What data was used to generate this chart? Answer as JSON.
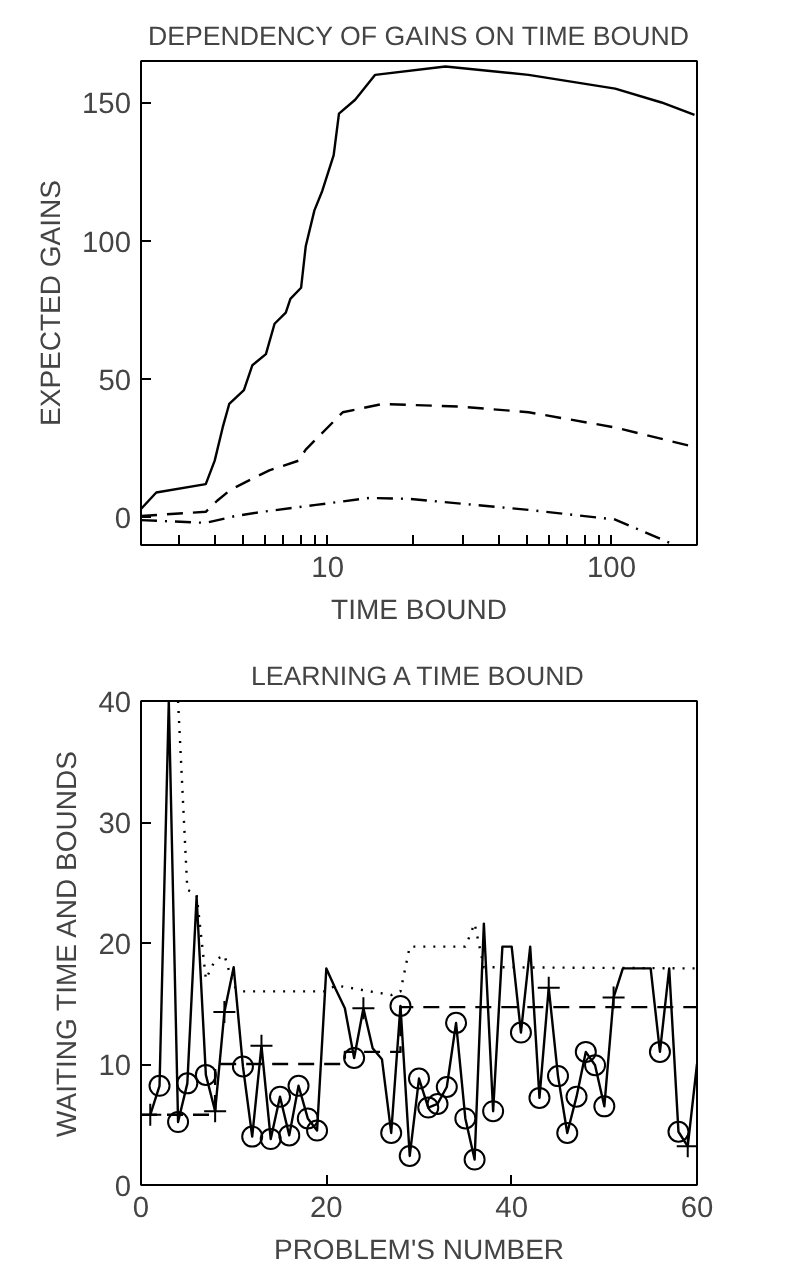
{
  "chart_data": [
    {
      "type": "line",
      "title": "DEPENDENCY OF GAINS ON TIME BOUND",
      "xlabel": "TIME BOUND",
      "ylabel": "EXPECTED GAINS",
      "log": "x",
      "grid": false,
      "xlim": [
        2.2,
        200
      ],
      "ylim": [
        -10,
        165
      ],
      "xticks": [
        {
          "value": 3,
          "label": null
        },
        {
          "value": 4,
          "label": null
        },
        {
          "value": 5,
          "label": null
        },
        {
          "value": 6,
          "label": null
        },
        {
          "value": 7,
          "label": null
        },
        {
          "value": 8,
          "label": null
        },
        {
          "value": 9,
          "label": null
        },
        10,
        {
          "value": 20,
          "label": null
        },
        {
          "value": 30,
          "label": null
        },
        {
          "value": 40,
          "label": null
        },
        {
          "value": 50,
          "label": null
        },
        {
          "value": 60,
          "label": null
        },
        {
          "value": 70,
          "label": null
        },
        {
          "value": 80,
          "label": null
        },
        {
          "value": 90,
          "label": null
        },
        100
      ],
      "yticks": [
        0,
        50,
        100,
        150
      ],
      "series": [
        {
          "color": "#000000",
          "line_style": "solid",
          "x": [
            2.2,
            2.49,
            3.72,
            4.0,
            4.27,
            4.5,
            5.07,
            5.43,
            6.06,
            6.5,
            7.12,
            7.39,
            8.06,
            8.37,
            8.98,
            9.57,
            10.5,
            10.96,
            12.5,
            14.7,
            26,
            51,
            103,
            150,
            196
          ],
          "values": [
            3,
            9,
            12,
            20.5,
            32.6,
            41,
            46,
            55,
            59,
            70,
            74,
            79,
            83,
            98,
            111,
            118,
            131,
            146,
            151,
            160,
            163,
            160,
            155,
            150,
            145.5
          ]
        },
        {
          "color": "#000000",
          "line_style": "dashed",
          "x": [
            2.2,
            3.72,
            4.08,
            4.55,
            5.2,
            6.23,
            7.9,
            8.37,
            11.3,
            15.6,
            29.7,
            51,
            103,
            186
          ],
          "values": [
            0.5,
            2,
            6,
            10,
            13,
            17,
            20.5,
            24.5,
            38,
            41,
            40,
            38,
            32.5,
            26
          ]
        },
        {
          "color": "#000000",
          "line_style": "dashdot",
          "x": [
            2.2,
            3.72,
            4.74,
            5.9,
            9.1,
            14,
            19.3,
            51,
            103,
            167
          ],
          "values": [
            -1,
            -2,
            0.5,
            2,
            4.5,
            7,
            6.7,
            2.7,
            -0.8,
            -10
          ]
        }
      ]
    },
    {
      "type": "line",
      "title": "LEARNING A TIME BOUND",
      "xlabel": "PROBLEM'S NUMBER",
      "ylabel": "WAITING TIME AND BOUNDS",
      "grid": false,
      "xlim": [
        0,
        60
      ],
      "ylim": [
        0,
        40
      ],
      "xticks": [
        0,
        20,
        40,
        60
      ],
      "yticks": [
        0,
        10,
        20,
        30,
        40
      ],
      "series": [
        {
          "color": "#000000",
          "line_style": "solid",
          "marker": "none",
          "x": [
            1,
            2,
            3,
            4,
            5,
            6,
            7,
            8,
            9,
            10,
            11,
            12,
            13,
            14,
            15,
            16,
            17,
            18,
            19,
            20,
            21,
            22,
            23,
            24,
            25,
            26,
            27,
            28,
            29,
            30,
            31,
            32,
            33,
            34,
            35,
            36,
            37,
            38,
            39,
            40,
            41,
            42,
            43,
            44,
            45,
            46,
            47,
            48,
            49,
            50,
            51,
            52,
            53,
            54,
            55,
            56,
            57,
            58,
            59,
            60
          ],
          "values": [
            5.8,
            8.2,
            40,
            5.2,
            8.4,
            23.8,
            9.1,
            6.1,
            14.3,
            18,
            9.8,
            4.0,
            11.5,
            3.8,
            7.3,
            4.1,
            8.2,
            5.5,
            4.5,
            17.9,
            16.2,
            14.6,
            10.5,
            14.6,
            11.3,
            10.4,
            4.3,
            14.8,
            2.4,
            8.8,
            6.4,
            6.7,
            8.1,
            13.4,
            5.5,
            2.1,
            21.6,
            6.1,
            19.7,
            19.7,
            12.6,
            19.7,
            7.2,
            16.3,
            9.0,
            4.3,
            7.3,
            11.0,
            9.9,
            6.5,
            15.5,
            17.9,
            17.9,
            17.9,
            17.9,
            11.0,
            17.9,
            4.4,
            3.2,
            10
          ]
        },
        {
          "type": "scatter",
          "color": "#000000",
          "marker": "circle",
          "x": [
            2,
            4,
            5,
            7,
            11,
            12,
            14,
            15,
            16,
            17,
            18,
            19,
            23,
            27,
            28,
            29,
            30,
            31,
            32,
            33,
            34,
            35,
            36,
            38,
            41,
            43,
            45,
            46,
            47,
            48,
            49,
            50,
            56,
            58
          ],
          "values": [
            8.2,
            5.2,
            8.4,
            9.1,
            9.8,
            4.0,
            3.8,
            7.3,
            4.1,
            8.2,
            5.5,
            4.5,
            10.5,
            4.3,
            14.8,
            2.4,
            8.8,
            6.4,
            6.7,
            8.1,
            13.4,
            5.5,
            2.1,
            6.1,
            12.6,
            7.2,
            9.0,
            4.3,
            7.3,
            11.0,
            9.9,
            6.5,
            11.0,
            4.4
          ]
        },
        {
          "type": "scatter",
          "color": "#000000",
          "marker": "cross",
          "x": [
            1,
            8,
            9,
            13,
            24,
            44,
            51,
            59
          ],
          "values": [
            5.8,
            6.1,
            14.3,
            11.5,
            14.6,
            16.3,
            15.5,
            3.2
          ]
        },
        {
          "type": "step",
          "color": "#000000",
          "line_style": "dashed",
          "x": [
            0,
            2,
            8,
            22,
            28,
            60
          ],
          "values": [
            5.8,
            5.8,
            10,
            11,
            14.7,
            14.7
          ]
        },
        {
          "color": "#000000",
          "line_style": "dotted",
          "x": [
            4,
            5,
            6,
            7,
            8,
            9,
            10,
            11,
            20,
            21,
            27,
            28,
            29,
            35,
            36,
            37,
            60
          ],
          "values": [
            40,
            24.4,
            24,
            17,
            18.6,
            19,
            16.4,
            16,
            16,
            16.5,
            15.7,
            16,
            19.7,
            19.7,
            21.6,
            18,
            17.9
          ]
        }
      ]
    }
  ]
}
